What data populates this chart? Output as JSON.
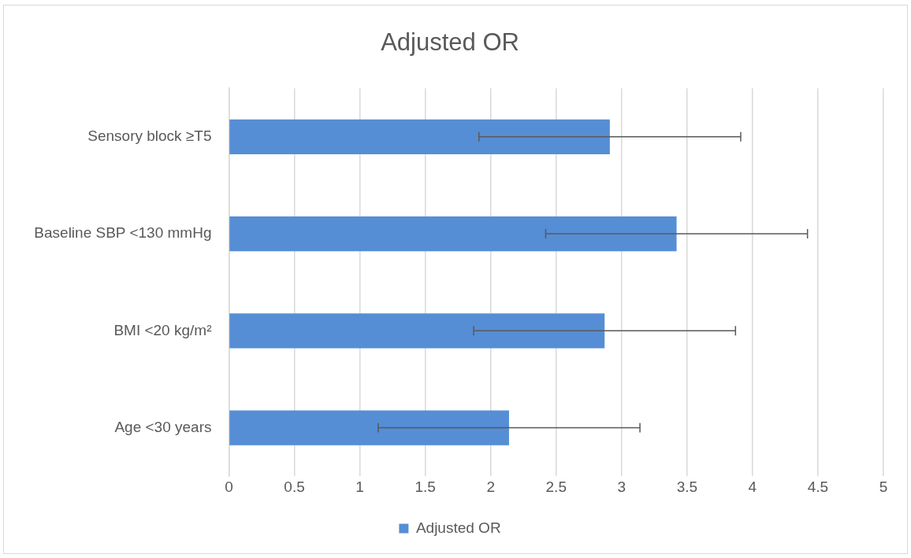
{
  "chart_data": {
    "type": "bar",
    "orientation": "horizontal",
    "title": "Adjusted OR",
    "categories": [
      "Sensory block ≥T5",
      "Baseline SBP <130 mmHg",
      "BMI <20 kg/m²",
      "Age <30 years"
    ],
    "series": [
      {
        "name": "Adjusted OR",
        "color": "#558ed5",
        "values": [
          2.91,
          3.42,
          2.87,
          2.14
        ],
        "errors": [
          1,
          1,
          1,
          1
        ]
      }
    ],
    "xlim": [
      0,
      5
    ],
    "xticks": [
      0,
      0.5,
      1,
      1.5,
      2,
      2.5,
      3,
      3.5,
      4,
      4.5,
      5
    ],
    "grid": "x",
    "legend": "bottom"
  }
}
